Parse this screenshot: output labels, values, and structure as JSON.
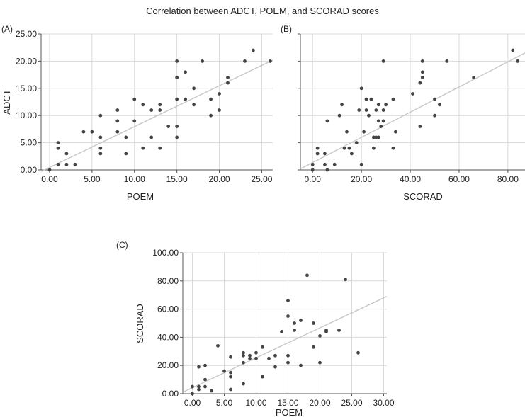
{
  "title": "Correlation between ADCT, POEM, and SCORAD scores",
  "chart_data": [
    {
      "panel": "(A)",
      "type": "scatter",
      "xlabel": "POEM",
      "ylabel": "ADCT",
      "xlim": [
        -1,
        26.3
      ],
      "ylim": [
        0,
        25
      ],
      "xticks": [
        0,
        5,
        10,
        15,
        20,
        25
      ],
      "xtick_labels": [
        "0.00",
        "5.00",
        "10.00",
        "15.00",
        "20.00",
        "25.00"
      ],
      "yticks": [
        0,
        5,
        10,
        15,
        20,
        25
      ],
      "ytick_labels": [
        "0.00",
        "5.00",
        "10.00",
        "15.00",
        "20.00",
        "25.00"
      ],
      "grid": true,
      "fit_line": [
        [
          -1,
          -0.3
        ],
        [
          26.3,
          20.2
        ]
      ],
      "points": [
        [
          0,
          0
        ],
        [
          1,
          5
        ],
        [
          1,
          4
        ],
        [
          1,
          1
        ],
        [
          2,
          3
        ],
        [
          2,
          1
        ],
        [
          3,
          1
        ],
        [
          4,
          7
        ],
        [
          5,
          7
        ],
        [
          6,
          10
        ],
        [
          6,
          6
        ],
        [
          6,
          4
        ],
        [
          6,
          3
        ],
        [
          8,
          11
        ],
        [
          8,
          9
        ],
        [
          8,
          7
        ],
        [
          9,
          6
        ],
        [
          9,
          3
        ],
        [
          10,
          13
        ],
        [
          10,
          9
        ],
        [
          11,
          12
        ],
        [
          11,
          4
        ],
        [
          12,
          11
        ],
        [
          12,
          6
        ],
        [
          13,
          12
        ],
        [
          13,
          11
        ],
        [
          13,
          4
        ],
        [
          14,
          8
        ],
        [
          15,
          20
        ],
        [
          15,
          17
        ],
        [
          15,
          13
        ],
        [
          15,
          8
        ],
        [
          15,
          6
        ],
        [
          16,
          18
        ],
        [
          16,
          13
        ],
        [
          17,
          15
        ],
        [
          17,
          12
        ],
        [
          18,
          20
        ],
        [
          19,
          13
        ],
        [
          19,
          10
        ],
        [
          20,
          14
        ],
        [
          20,
          11
        ],
        [
          21,
          17
        ],
        [
          21,
          16
        ],
        [
          23,
          20
        ],
        [
          24,
          22
        ],
        [
          26,
          20
        ]
      ]
    },
    {
      "panel": "(B)",
      "type": "scatter",
      "xlabel": "SCORAD",
      "ylabel": "",
      "xlim": [
        -5,
        87
      ],
      "ylim": [
        0,
        25
      ],
      "xticks": [
        0,
        20,
        40,
        60,
        80
      ],
      "xtick_labels": [
        "0.00",
        "20.00",
        "40.00",
        "60.00",
        "80.00"
      ],
      "yticks": [
        0,
        5,
        10,
        15,
        20,
        25
      ],
      "ytick_labels": [],
      "grid": true,
      "fit_line": [
        [
          -5,
          0.2
        ],
        [
          87,
          21.5
        ]
      ],
      "points": [
        [
          0,
          1
        ],
        [
          0,
          0
        ],
        [
          2,
          4
        ],
        [
          2,
          3
        ],
        [
          5,
          3
        ],
        [
          5,
          1
        ],
        [
          6,
          0
        ],
        [
          6,
          9
        ],
        [
          9,
          1
        ],
        [
          11,
          10
        ],
        [
          12,
          12
        ],
        [
          13,
          4
        ],
        [
          14,
          7
        ],
        [
          15,
          4
        ],
        [
          16,
          3
        ],
        [
          18,
          5
        ],
        [
          19,
          11
        ],
        [
          20,
          15
        ],
        [
          20,
          1
        ],
        [
          21,
          7
        ],
        [
          22,
          13
        ],
        [
          22,
          11
        ],
        [
          23,
          10
        ],
        [
          24,
          13
        ],
        [
          25,
          6
        ],
        [
          25,
          4
        ],
        [
          26,
          11
        ],
        [
          26,
          6
        ],
        [
          27,
          12
        ],
        [
          27,
          9
        ],
        [
          27,
          6
        ],
        [
          28,
          8
        ],
        [
          29,
          20
        ],
        [
          29,
          11
        ],
        [
          29,
          9
        ],
        [
          30,
          12
        ],
        [
          33,
          13
        ],
        [
          33,
          4
        ],
        [
          34,
          7
        ],
        [
          41,
          14
        ],
        [
          44,
          8
        ],
        [
          44,
          16
        ],
        [
          45,
          20
        ],
        [
          45,
          18
        ],
        [
          45,
          17
        ],
        [
          50,
          13
        ],
        [
          50,
          10
        ],
        [
          52,
          12
        ],
        [
          55,
          20
        ],
        [
          66,
          17
        ],
        [
          82,
          22
        ],
        [
          84,
          20
        ]
      ]
    },
    {
      "panel": "(C)",
      "type": "scatter",
      "xlabel": "POEM",
      "ylabel": "SCORAD",
      "xlim": [
        -1.5,
        30.5
      ],
      "ylim": [
        0,
        100
      ],
      "xticks": [
        0,
        5,
        10,
        15,
        20,
        25,
        30
      ],
      "xtick_labels": [
        "0.00",
        "5.00",
        "10.00",
        "15.00",
        "20.00",
        "25.00",
        "30.00"
      ],
      "yticks": [
        0,
        20,
        40,
        60,
        80,
        100
      ],
      "ytick_labels": [
        "0.00",
        "20.00",
        "40.00",
        "60.00",
        "80.00",
        "100.00"
      ],
      "grid": true,
      "fit_line": [
        [
          -1.5,
          1.0
        ],
        [
          30.5,
          69.0
        ]
      ],
      "points": [
        [
          0,
          0
        ],
        [
          0,
          5
        ],
        [
          1,
          5
        ],
        [
          1,
          3
        ],
        [
          1,
          19
        ],
        [
          2,
          20
        ],
        [
          2,
          10
        ],
        [
          2,
          5
        ],
        [
          3,
          2
        ],
        [
          4,
          34
        ],
        [
          5,
          16
        ],
        [
          6,
          26
        ],
        [
          6,
          15
        ],
        [
          6,
          12
        ],
        [
          6,
          3
        ],
        [
          8,
          29
        ],
        [
          8,
          27
        ],
        [
          8,
          7
        ],
        [
          8,
          22
        ],
        [
          9,
          27
        ],
        [
          9,
          25
        ],
        [
          10,
          29
        ],
        [
          10,
          25
        ],
        [
          11,
          33
        ],
        [
          11,
          12
        ],
        [
          12,
          25
        ],
        [
          13,
          27
        ],
        [
          13,
          19
        ],
        [
          14,
          44
        ],
        [
          15,
          55
        ],
        [
          15,
          66
        ],
        [
          15,
          27
        ],
        [
          15,
          22
        ],
        [
          16,
          45
        ],
        [
          16,
          50
        ],
        [
          17,
          52
        ],
        [
          17,
          20
        ],
        [
          18,
          84
        ],
        [
          19,
          33
        ],
        [
          19,
          50
        ],
        [
          20,
          41
        ],
        [
          20,
          22
        ],
        [
          21,
          44
        ],
        [
          21,
          45
        ],
        [
          23,
          45
        ],
        [
          24,
          81
        ],
        [
          26,
          29
        ]
      ]
    }
  ]
}
